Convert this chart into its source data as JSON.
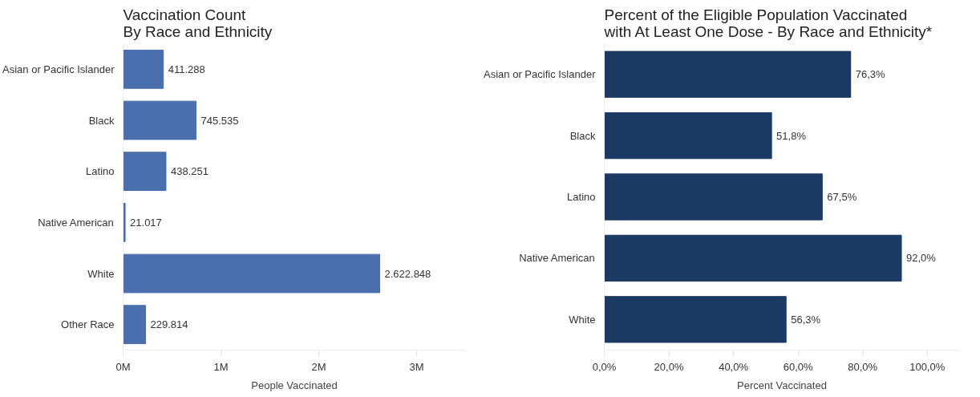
{
  "chart_data": [
    {
      "type": "bar",
      "orientation": "horizontal",
      "title": "Vaccination Count\nBy Race and Ethnicity",
      "xlabel": "People Vaccinated",
      "categories": [
        "Asian or Pacific Islander",
        "Black",
        "Latino",
        "Native American",
        "White",
        "Other Race"
      ],
      "values": [
        411288,
        745535,
        438251,
        21017,
        2622848,
        229814
      ],
      "value_labels": [
        "411.288",
        "745.535",
        "438.251",
        "21.017",
        "2.622.848",
        "229.814"
      ],
      "color": "#4a6fae",
      "xlim": [
        0,
        3500000
      ],
      "xticks": [
        {
          "value": 0,
          "label": "0M"
        },
        {
          "value": 1000000,
          "label": "1M"
        },
        {
          "value": 2000000,
          "label": "2M"
        },
        {
          "value": 3000000,
          "label": "3M"
        }
      ],
      "grid": false
    },
    {
      "type": "bar",
      "orientation": "horizontal",
      "title": "Percent of the Eligible Population Vaccinated\nwith At Least One Dose - By Race and Ethnicity*",
      "xlabel": "Percent Vaccinated",
      "categories": [
        "Asian or Pacific Islander",
        "Black",
        "Latino",
        "Native American",
        "White"
      ],
      "values": [
        76.3,
        51.8,
        67.5,
        92.0,
        56.3
      ],
      "value_labels": [
        "76,3%",
        "51,8%",
        "67,5%",
        "92,0%",
        "56,3%"
      ],
      "color": "#1b3a63",
      "xlim": [
        0,
        110
      ],
      "xticks": [
        {
          "value": 0,
          "label": "0,0%"
        },
        {
          "value": 20,
          "label": "20,0%"
        },
        {
          "value": 40,
          "label": "40,0%"
        },
        {
          "value": 60,
          "label": "60,0%"
        },
        {
          "value": 80,
          "label": "80,0%"
        },
        {
          "value": 100,
          "label": "100,0%"
        }
      ],
      "grid": false
    }
  ]
}
